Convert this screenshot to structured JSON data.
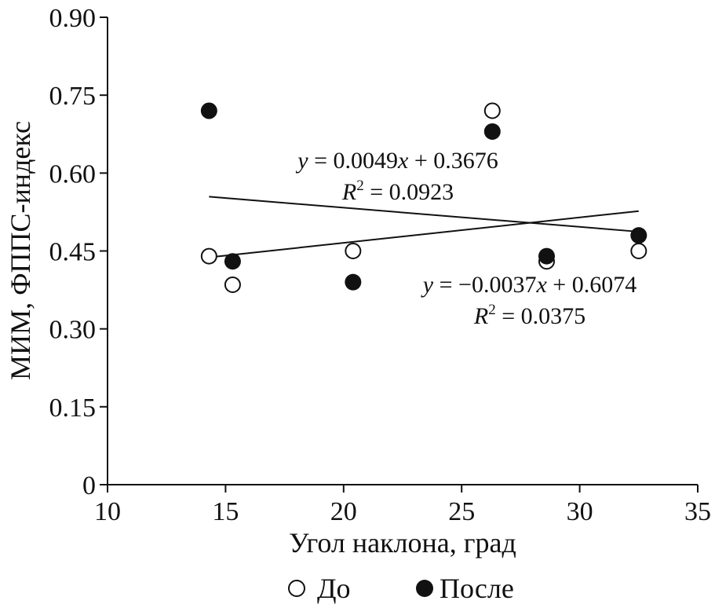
{
  "chart_data": {
    "type": "scatter",
    "xlabel": "Угол наклона, град",
    "ylabel": "МИМ, ФППС-индекс",
    "xlim": [
      10,
      35
    ],
    "ylim": [
      0,
      0.9
    ],
    "x_ticks": [
      10,
      15,
      20,
      25,
      30,
      35
    ],
    "x_tick_labels": [
      "10",
      "15",
      "20",
      "25",
      "30",
      "35"
    ],
    "y_ticks": [
      0,
      0.15,
      0.3,
      0.45,
      0.6,
      0.75,
      0.9
    ],
    "y_tick_labels": [
      "0",
      "0.15",
      "0.30",
      "0.45",
      "0.60",
      "0.75",
      "0.90"
    ],
    "grid": false,
    "legend_position": "bottom",
    "series": [
      {
        "name": "До",
        "marker": "open-circle",
        "color": "#111111",
        "points": [
          {
            "x": 14.3,
            "y": 0.44
          },
          {
            "x": 15.3,
            "y": 0.385
          },
          {
            "x": 20.4,
            "y": 0.45
          },
          {
            "x": 26.3,
            "y": 0.72
          },
          {
            "x": 28.6,
            "y": 0.43
          },
          {
            "x": 32.5,
            "y": 0.45
          }
        ],
        "trend": {
          "slope": 0.0049,
          "intercept": 0.3676,
          "x_range": [
            14.3,
            32.5
          ]
        }
      },
      {
        "name": "После",
        "marker": "filled-circle",
        "color": "#111111",
        "points": [
          {
            "x": 14.3,
            "y": 0.72
          },
          {
            "x": 15.3,
            "y": 0.43
          },
          {
            "x": 20.4,
            "y": 0.39
          },
          {
            "x": 26.3,
            "y": 0.68
          },
          {
            "x": 28.6,
            "y": 0.44
          },
          {
            "x": 32.5,
            "y": 0.48
          }
        ],
        "trend": {
          "slope": -0.0037,
          "intercept": 0.6074,
          "x_range": [
            14.3,
            32.5
          ]
        }
      }
    ],
    "annotations": [
      {
        "y_prefix": "y",
        "y_rest": " = 0.0049",
        "x_sym": "x",
        "tail": " + 0.3676",
        "r_sym": "R",
        "r_sup": "2",
        "r_rest": " = 0.0923"
      },
      {
        "y_prefix": "y",
        "y_rest": " = −0.0037",
        "x_sym": "x",
        "tail": " + 0.6074",
        "r_sym": "R",
        "r_sup": "2",
        "r_rest": " = 0.0375"
      }
    ]
  }
}
